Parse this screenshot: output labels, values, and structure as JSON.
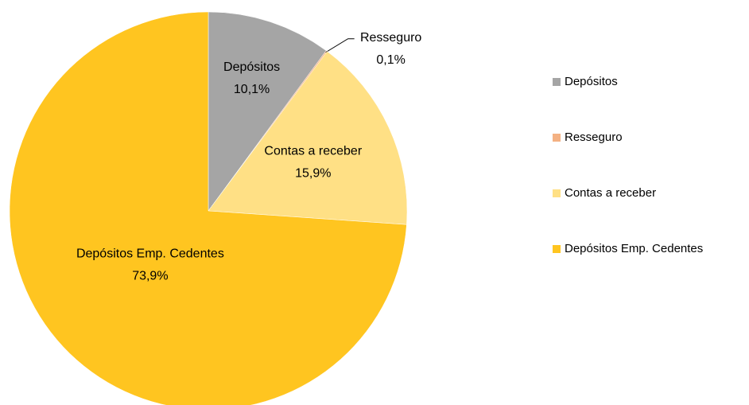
{
  "chart_data": {
    "type": "pie",
    "categories": [
      "Depósitos",
      "Resseguro",
      "Contas a receber",
      "Depósitos Emp. Cedentes"
    ],
    "values": [
      10.1,
      0.1,
      15.9,
      73.9
    ],
    "value_labels": [
      "10,1%",
      "0,1%",
      "15,9%",
      "73,9%"
    ],
    "colors": [
      "#a5a5a5",
      "#f4b183",
      "#ffe085",
      "#ffc520"
    ],
    "legend": "right"
  }
}
